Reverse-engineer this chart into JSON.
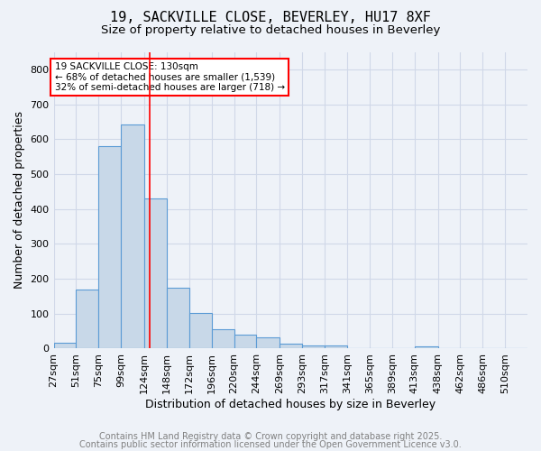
{
  "title1": "19, SACKVILLE CLOSE, BEVERLEY, HU17 8XF",
  "title2": "Size of property relative to detached houses in Beverley",
  "xlabel": "Distribution of detached houses by size in Beverley",
  "ylabel": "Number of detached properties",
  "bar_values": [
    17,
    168,
    581,
    641,
    430,
    175,
    103,
    55,
    40,
    31,
    14,
    10,
    9,
    0,
    0,
    0,
    7,
    0,
    0,
    0,
    0
  ],
  "bin_edges": [
    27,
    51,
    75,
    99,
    124,
    148,
    172,
    196,
    220,
    244,
    269,
    293,
    317,
    341,
    365,
    389,
    413,
    438,
    462,
    486,
    510,
    534
  ],
  "bin_labels": [
    "27sqm",
    "51sqm",
    "75sqm",
    "99sqm",
    "124sqm",
    "148sqm",
    "172sqm",
    "196sqm",
    "220sqm",
    "244sqm",
    "269sqm",
    "293sqm",
    "317sqm",
    "341sqm",
    "365sqm",
    "389sqm",
    "413sqm",
    "438sqm",
    "462sqm",
    "486sqm",
    "510sqm"
  ],
  "bar_color": "#c8d8e8",
  "bar_edge_color": "#5b9bd5",
  "grid_color": "#d0d8e8",
  "bg_color": "#eef2f8",
  "vline_x": 130,
  "vline_color": "red",
  "annotation_text": "19 SACKVILLE CLOSE: 130sqm\n← 68% of detached houses are smaller (1,539)\n32% of semi-detached houses are larger (718) →",
  "annotation_box_color": "white",
  "annotation_box_edge": "red",
  "ylim": [
    0,
    850
  ],
  "yticks": [
    0,
    100,
    200,
    300,
    400,
    500,
    600,
    700,
    800
  ],
  "footer1": "Contains HM Land Registry data © Crown copyright and database right 2025.",
  "footer2": "Contains public sector information licensed under the Open Government Licence v3.0.",
  "title_fontsize": 11,
  "axis_label_fontsize": 9,
  "tick_fontsize": 8,
  "footer_fontsize": 7
}
